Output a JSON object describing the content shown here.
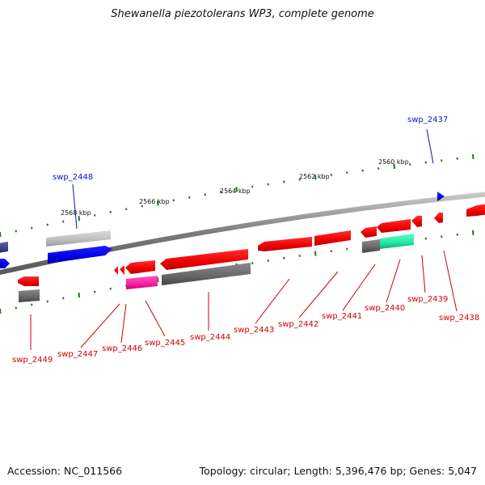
{
  "title": "Shewanella piezotolerans WP3, complete genome",
  "footer": {
    "accession": "Accession: NC_011566",
    "summary": "Topology: circular; Length: 5,396,476 bp; Genes: 5,047"
  },
  "ruler_ticks": [
    {
      "label": "2568 kbp"
    },
    {
      "label": "2566 kbp"
    },
    {
      "label": "2564 kbp"
    },
    {
      "label": "2562 kbp"
    },
    {
      "label": "2560 kbp"
    }
  ],
  "genes": [
    {
      "label": "swp_2449",
      "color": "#d00000"
    },
    {
      "label": "swp_2448",
      "color": "#1010c0"
    },
    {
      "label": "swp_2447",
      "color": "#d00000"
    },
    {
      "label": "swp_2446",
      "color": "#d00000"
    },
    {
      "label": "swp_2445",
      "color": "#d00000"
    },
    {
      "label": "swp_2444",
      "color": "#d00000"
    },
    {
      "label": "swp_2443",
      "color": "#d00000"
    },
    {
      "label": "swp_2442",
      "color": "#d00000"
    },
    {
      "label": "swp_2441",
      "color": "#d00000"
    },
    {
      "label": "swp_2440",
      "color": "#d00000"
    },
    {
      "label": "swp_2439",
      "color": "#d00000"
    },
    {
      "label": "swp_2438",
      "color": "#d00000"
    },
    {
      "label": "swp_2437",
      "color": "#1010c0"
    }
  ],
  "colors": {
    "forward_gene": "#ff0000",
    "reverse_gene": "#ff0000",
    "rna_blue": "#0000ee",
    "pseudo_gray": "#6b6b6b",
    "light_gray": "#bdbdbd",
    "magenta": "#ff1fa0",
    "teal": "#22e6a0",
    "backbone": "#808080",
    "gc_ticks": "#1a7a1a"
  }
}
